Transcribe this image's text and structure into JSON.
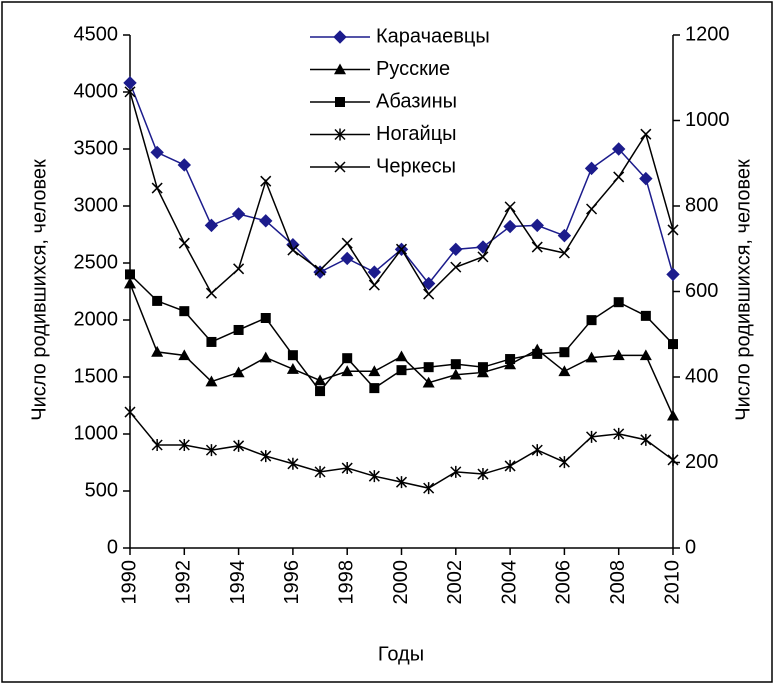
{
  "chart_data": {
    "type": "line",
    "x_label": "Годы",
    "y_label": "Число родившихся, человек",
    "y2_label": "Число родившихся, человек",
    "x": [
      1990,
      1991,
      1992,
      1993,
      1994,
      1995,
      1996,
      1997,
      1998,
      1999,
      2000,
      2001,
      2002,
      2003,
      2004,
      2005,
      2006,
      2007,
      2008,
      2009,
      2010
    ],
    "xlim": [
      1990,
      2010
    ],
    "xticks": [
      1990,
      1992,
      1994,
      1996,
      1998,
      2000,
      2002,
      2004,
      2006,
      2008,
      2010
    ],
    "ylim": [
      0,
      4500
    ],
    "yticks": [
      0,
      500,
      1000,
      1500,
      2000,
      2500,
      3000,
      3500,
      4000,
      4500
    ],
    "y2lim": [
      0,
      1200
    ],
    "y2ticks": [
      0,
      200,
      400,
      600,
      800,
      1000,
      1200
    ],
    "grid": false,
    "legend": "top",
    "series": [
      {
        "name": "Карачаевцы",
        "color": "#1c1c8c",
        "marker": "diamond",
        "axis": "y",
        "values": [
          4080,
          3470,
          3360,
          2830,
          2930,
          2870,
          2660,
          2420,
          2540,
          2420,
          2620,
          2320,
          2620,
          2640,
          2820,
          2830,
          2740,
          3330,
          3500,
          3240,
          2400
        ]
      },
      {
        "name": "Русские",
        "color": "#000000",
        "marker": "triangle",
        "axis": "y",
        "values": [
          2320,
          1720,
          1690,
          1460,
          1540,
          1670,
          1570,
          1470,
          1550,
          1550,
          1680,
          1450,
          1520,
          1540,
          1610,
          1740,
          1550,
          1670,
          1690,
          1690,
          1160
        ]
      },
      {
        "name": "Абазины",
        "color": "#000000",
        "marker": "square",
        "axis": "y2",
        "values": [
          640,
          578,
          554,
          482,
          510,
          538,
          451,
          367,
          444,
          374,
          416,
          423,
          430,
          423,
          442,
          454,
          458,
          533,
          575,
          543,
          477
        ]
      },
      {
        "name": "Ногайцы",
        "color": "#000000",
        "marker": "asterisk",
        "axis": "y2",
        "values": [
          318,
          241,
          241,
          229,
          239,
          215,
          197,
          178,
          187,
          168,
          154,
          140,
          178,
          173,
          192,
          229,
          201,
          260,
          267,
          253,
          206
        ]
      },
      {
        "name": "Черкесы",
        "color": "#000000",
        "marker": "cross",
        "axis": "y2",
        "values": [
          1067,
          842,
          713,
          596,
          653,
          858,
          697,
          650,
          713,
          615,
          699,
          594,
          657,
          681,
          798,
          704,
          690,
          793,
          868,
          968,
          744
        ]
      }
    ]
  }
}
